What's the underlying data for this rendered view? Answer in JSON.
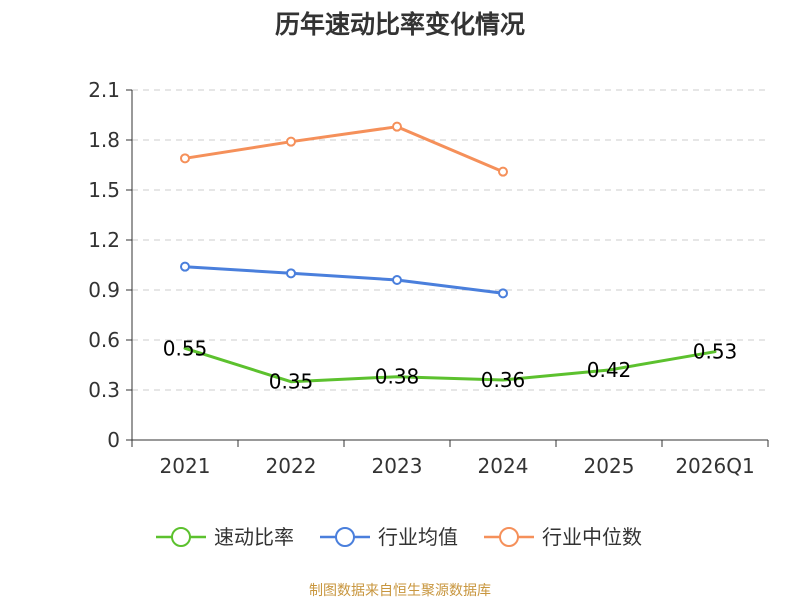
{
  "chart_data": {
    "type": "line",
    "title": "历年速动比率变化情况",
    "categories": [
      "2021",
      "2022",
      "2023",
      "2024",
      "2025",
      "2026Q1"
    ],
    "y_ticks": [
      "0",
      "0.3",
      "0.6",
      "0.9",
      "1.2",
      "1.5",
      "1.8",
      "2.1"
    ],
    "ylim": [
      0,
      2.1
    ],
    "xlabel": "",
    "ylabel": "",
    "grid": true,
    "legend_position": "bottom",
    "series": [
      {
        "name": "速动比率",
        "color": "#5cc12e",
        "values": [
          0.55,
          0.35,
          0.38,
          0.36,
          0.42,
          0.53
        ],
        "labels": [
          "0.55",
          "0.35",
          "0.38",
          "0.36",
          "0.42",
          "0.53"
        ],
        "show_labels": true,
        "show_markers": false
      },
      {
        "name": "行业均值",
        "color": "#4a7fdc",
        "values": [
          1.04,
          1.0,
          0.96,
          0.88,
          null,
          null
        ],
        "show_labels": false,
        "show_markers": true
      },
      {
        "name": "行业中位数",
        "color": "#f5905a",
        "values": [
          1.69,
          1.79,
          1.88,
          1.61,
          null,
          null
        ],
        "show_labels": false,
        "show_markers": true
      }
    ],
    "source": "制图数据来自恒生聚源数据库"
  }
}
